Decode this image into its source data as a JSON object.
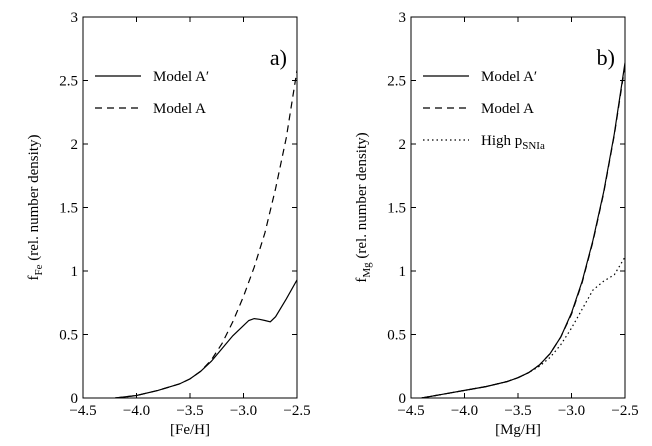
{
  "chart_data": [
    {
      "type": "line",
      "panel_label": "a)",
      "xlabel": "[Fe/H]",
      "ylabel_main": "f",
      "ylabel_sub": "Fe",
      "ylabel_rest": " (rel. number density)",
      "xlim": [
        -4.5,
        -2.5
      ],
      "ylim": [
        0,
        3
      ],
      "xticks": [
        -4.5,
        -4.0,
        -3.5,
        -3.0,
        -2.5
      ],
      "xtick_labels": [
        "−4.5",
        "−4.0",
        "−3.5",
        "−3.0",
        "−2.5"
      ],
      "yticks": [
        0,
        0.5,
        1,
        1.5,
        2,
        2.5,
        3
      ],
      "ytick_labels": [
        "0",
        "0.5",
        "1",
        "1.5",
        "2",
        "2.5",
        "3"
      ],
      "legend_position": "top-left",
      "series": [
        {
          "name": "Model A′",
          "style": "solid",
          "x": [
            -4.2,
            -4.0,
            -3.8,
            -3.6,
            -3.5,
            -3.4,
            -3.3,
            -3.2,
            -3.1,
            -3.0,
            -2.95,
            -2.9,
            -2.85,
            -2.8,
            -2.75,
            -2.7,
            -2.6,
            -2.5
          ],
          "y": [
            0.0,
            0.02,
            0.06,
            0.11,
            0.15,
            0.21,
            0.29,
            0.39,
            0.49,
            0.57,
            0.61,
            0.625,
            0.62,
            0.61,
            0.6,
            0.64,
            0.78,
            0.93
          ]
        },
        {
          "name": "Model A",
          "style": "dashed",
          "x": [
            -4.2,
            -4.0,
            -3.8,
            -3.6,
            -3.5,
            -3.4,
            -3.3,
            -3.2,
            -3.1,
            -3.0,
            -2.9,
            -2.8,
            -2.7,
            -2.6,
            -2.5
          ],
          "y": [
            0.0,
            0.02,
            0.06,
            0.11,
            0.15,
            0.21,
            0.3,
            0.43,
            0.6,
            0.8,
            1.03,
            1.3,
            1.65,
            2.05,
            2.58
          ]
        }
      ]
    },
    {
      "type": "line",
      "panel_label": "b)",
      "xlabel": "[Mg/H]",
      "ylabel_main": "f",
      "ylabel_sub": "Mg",
      "ylabel_rest": " (rel. number density)",
      "xlim": [
        -4.5,
        -2.5
      ],
      "ylim": [
        0,
        3
      ],
      "xticks": [
        -4.5,
        -4.0,
        -3.5,
        -3.0,
        -2.5
      ],
      "xtick_labels": [
        "−4.5",
        "−4.0",
        "−3.5",
        "−3.0",
        "−2.5"
      ],
      "yticks": [
        0,
        0.5,
        1,
        1.5,
        2,
        2.5,
        3
      ],
      "ytick_labels": [
        "0",
        "0.5",
        "1",
        "1.5",
        "2",
        "2.5",
        "3"
      ],
      "legend_position": "top-left",
      "series": [
        {
          "name": "Model A′",
          "style": "solid",
          "x": [
            -4.4,
            -4.2,
            -4.0,
            -3.8,
            -3.6,
            -3.5,
            -3.4,
            -3.3,
            -3.2,
            -3.1,
            -3.0,
            -2.9,
            -2.8,
            -2.7,
            -2.6,
            -2.5
          ],
          "y": [
            0.0,
            0.03,
            0.06,
            0.09,
            0.13,
            0.16,
            0.2,
            0.26,
            0.35,
            0.48,
            0.67,
            0.92,
            1.24,
            1.62,
            2.08,
            2.64
          ]
        },
        {
          "name": "Model A",
          "style": "dashed",
          "x": [
            -4.4,
            -4.2,
            -4.0,
            -3.8,
            -3.6,
            -3.5,
            -3.4,
            -3.3,
            -3.2,
            -3.1,
            -3.0,
            -2.9,
            -2.8,
            -2.7,
            -2.6,
            -2.5
          ],
          "y": [
            0.0,
            0.03,
            0.06,
            0.09,
            0.13,
            0.16,
            0.2,
            0.26,
            0.35,
            0.48,
            0.66,
            0.91,
            1.23,
            1.61,
            2.07,
            2.62
          ]
        },
        {
          "name": "High p",
          "name_sub": "SNIa",
          "style": "dotted",
          "x": [
            -4.4,
            -4.2,
            -4.0,
            -3.8,
            -3.6,
            -3.5,
            -3.4,
            -3.3,
            -3.2,
            -3.1,
            -3.0,
            -2.9,
            -2.8,
            -2.7,
            -2.6,
            -2.5
          ],
          "y": [
            0.0,
            0.03,
            0.06,
            0.09,
            0.13,
            0.16,
            0.2,
            0.25,
            0.32,
            0.42,
            0.55,
            0.7,
            0.85,
            0.92,
            0.97,
            1.11
          ]
        }
      ]
    }
  ]
}
